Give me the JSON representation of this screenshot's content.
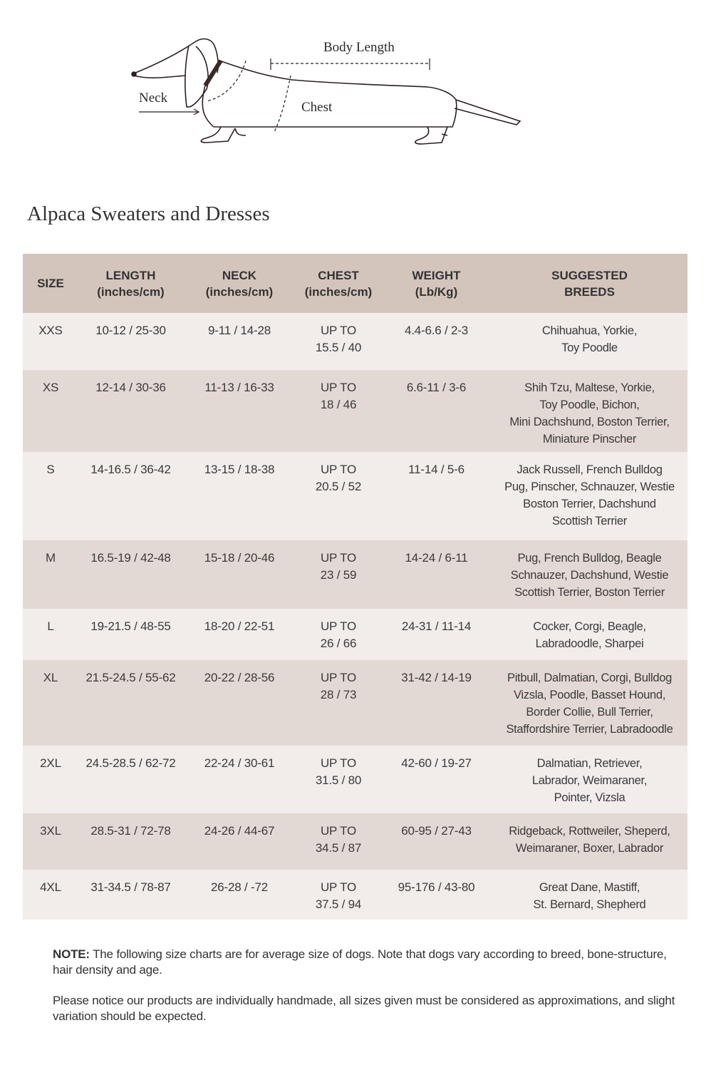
{
  "illustration": {
    "labels": {
      "body_length": "Body Length",
      "neck": "Neck",
      "chest": "Chest"
    }
  },
  "title": "Alpaca Sweaters and Dresses",
  "table": {
    "headers": [
      {
        "line1": "SIZE",
        "line2": ""
      },
      {
        "line1": "LENGTH",
        "line2": "(inches/cm)"
      },
      {
        "line1": "NECK",
        "line2": "(inches/cm)"
      },
      {
        "line1": "CHEST",
        "line2": "(inches/cm)"
      },
      {
        "line1": "WEIGHT",
        "line2": "(Lb/Kg)"
      },
      {
        "line1": "SUGGESTED",
        "line2": "BREEDS"
      }
    ],
    "rows": [
      {
        "size": "XXS",
        "length": "10-12 / 25-30",
        "neck": "9-11 / 14-28",
        "chest": [
          "UP TO",
          "15.5 / 40"
        ],
        "weight": "4.4-6.6 / 2-3",
        "breeds": [
          "Chihuahua, Yorkie,",
          "Toy Poodle"
        ]
      },
      {
        "size": "XS",
        "length": "12-14 / 30-36",
        "neck": "11-13 / 16-33",
        "chest": [
          "UP TO",
          "18 / 46"
        ],
        "weight": "6.6-11 / 3-6",
        "breeds": [
          "Shih Tzu, Maltese, Yorkie,",
          "Toy Poodle, Bichon,",
          "Mini Dachshund, Boston Terrier,",
          "Miniature Pinscher"
        ]
      },
      {
        "size": "S",
        "length": "14-16.5 / 36-42",
        "neck": "13-15 / 18-38",
        "chest": [
          "UP TO",
          "20.5 / 52"
        ],
        "weight": "11-14 / 5-6",
        "breeds": [
          "Jack Russell, French Bulldog",
          "Pug, Pinscher, Schnauzer, Westie",
          "Boston Terrier, Dachshund",
          "Scottish Terrier"
        ]
      },
      {
        "size": "M",
        "length": "16.5-19 / 42-48",
        "neck": "15-18 / 20-46",
        "chest": [
          "UP TO",
          "23 / 59"
        ],
        "weight": "14-24 / 6-11",
        "breeds": [
          "Pug, French Bulldog, Beagle",
          "Schnauzer, Dachshund, Westie",
          "Scottish Terrier, Boston Terrier"
        ]
      },
      {
        "size": "L",
        "length": "19-21.5 / 48-55",
        "neck": "18-20 / 22-51",
        "chest": [
          "UP TO",
          "26 / 66"
        ],
        "weight": "24-31 / 11-14",
        "breeds": [
          "Cocker, Corgi, Beagle,",
          "Labradoodle, Sharpei"
        ]
      },
      {
        "size": "XL",
        "length": "21.5-24.5 / 55-62",
        "neck": "20-22 / 28-56",
        "chest": [
          "UP TO",
          "28 / 73"
        ],
        "weight": "31-42 / 14-19",
        "breeds": [
          "Pitbull, Dalmatian, Corgi, Bulldog",
          "Vizsla, Poodle, Basset Hound,",
          "Border Collie, Bull Terrier,",
          "Staffordshire Terrier, Labradoodle"
        ]
      },
      {
        "size": "2XL",
        "length": "24.5-28.5 / 62-72",
        "neck": "22-24 / 30-61",
        "chest": [
          "UP TO",
          "31.5 / 80"
        ],
        "weight": "42-60 / 19-27",
        "breeds": [
          "Dalmatian, Retriever,",
          "Labrador, Weimaraner,",
          "Pointer, Vizsla"
        ]
      },
      {
        "size": "3XL",
        "length": "28.5-31 / 72-78",
        "neck": "24-26 / 44-67",
        "chest": [
          "UP TO",
          "34.5 / 87"
        ],
        "weight": "60-95 / 27-43",
        "breeds": [
          "Ridgeback, Rottweiler, Sheperd,",
          "Weimaraner, Boxer, Labrador"
        ]
      },
      {
        "size": "4XL",
        "length": "31-34.5 / 78-87",
        "neck": "26-28 / -72",
        "chest": [
          "UP TO",
          "37.5 / 94"
        ],
        "weight": "95-176 / 43-80",
        "breeds": [
          "Great Dane, Mastiff,",
          "St. Bernard, Shepherd"
        ]
      }
    ]
  },
  "notes": {
    "note_label": "NOTE:",
    "note_text": " The following size charts are for average size of dogs. Note that dogs vary according to breed, bone-structure, hair density and age.",
    "disclaimer": "Please notice our products are individually handmade, all sizes given must be considered as approximations, and  slight variation should be expected."
  },
  "colors": {
    "header_bg": "#d3c5bc",
    "row_light": "#f2ecea",
    "row_dark": "#e3d9d4"
  }
}
